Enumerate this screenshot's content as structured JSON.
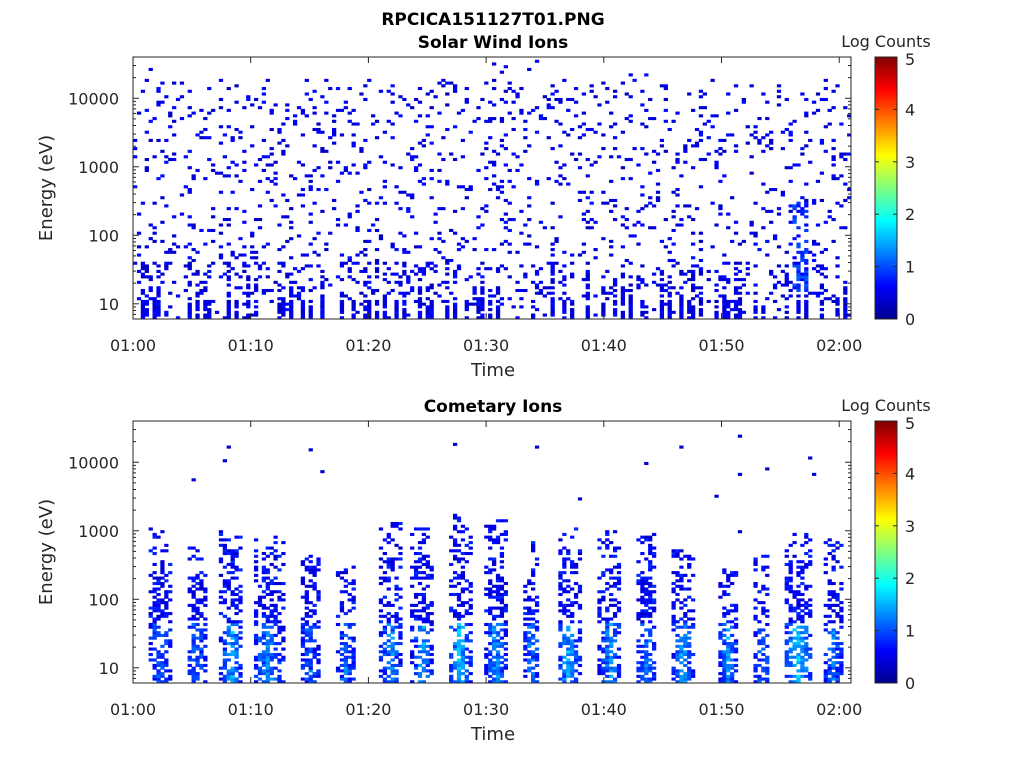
{
  "figure": {
    "file_title": "RPCICA151127T01.PNG"
  },
  "chart_data": [
    {
      "type": "heatmap",
      "title": "Solar Wind Ions",
      "xlabel": "Time",
      "ylabel": "Energy (eV)",
      "x_ticks": [
        "01:00",
        "01:10",
        "01:20",
        "01:30",
        "01:40",
        "01:50",
        "02:00"
      ],
      "x_range_minutes": [
        0,
        61
      ],
      "y_scale": "log",
      "y_ticks": [
        "10",
        "100",
        "1000",
        "10000"
      ],
      "y_tick_values": [
        10,
        100,
        1000,
        10000
      ],
      "y_range": [
        6,
        40000
      ],
      "colorbar": {
        "label": "Log Counts",
        "ticks": [
          "0",
          "1",
          "2",
          "3",
          "4",
          "5"
        ],
        "range": [
          0,
          5
        ],
        "colormap": "jet"
      },
      "pattern": "sparse background counts (~0.3-0.7 log counts) scattered across all energies, denser vertical streaks below 40 eV",
      "hot_regions": [
        {
          "t_min": 56.0,
          "t_max": 57.5,
          "e_min": 15,
          "e_max": 300,
          "level": 1.0
        }
      ],
      "bottom_streak_minutes": [
        1.0,
        2.0,
        4.8,
        5.5,
        6.3,
        8.0,
        8.7,
        9.8,
        10.4,
        12.6,
        13.4,
        14.3,
        15.2,
        16.0,
        17.8,
        18.7,
        19.9,
        20.7,
        21.4,
        22.3,
        23.1,
        24.4,
        25.2,
        26.8,
        27.5,
        28.4,
        29.5,
        30.3,
        31.0,
        33.9,
        35.5,
        36.6,
        37.3,
        38.6,
        39.9,
        40.8,
        41.7,
        42.3,
        43.4,
        44.8,
        45.7,
        46.7,
        47.4,
        48.3,
        49.6,
        50.4,
        51.4,
        52.8,
        53.5,
        55.4,
        56.4,
        57.1,
        58.5,
        59.7,
        60.5
      ]
    },
    {
      "type": "heatmap",
      "title": "Cometary Ions",
      "xlabel": "Time",
      "ylabel": "Energy (eV)",
      "x_ticks": [
        "01:00",
        "01:10",
        "01:20",
        "01:30",
        "01:40",
        "01:50",
        "02:00"
      ],
      "x_range_minutes": [
        0,
        61
      ],
      "y_scale": "log",
      "y_ticks": [
        "10",
        "100",
        "1000",
        "10000"
      ],
      "y_tick_values": [
        10,
        100,
        1000,
        10000
      ],
      "y_range": [
        6,
        40000
      ],
      "colorbar": {
        "label": "Log Counts",
        "ticks": [
          "0",
          "1",
          "2",
          "3",
          "4",
          "5"
        ],
        "range": [
          0,
          5
        ],
        "colormap": "jet"
      },
      "pattern": "periodic vertical bursts of cometary ions, peak counts at low energies (~7-40 eV) reaching ~1.5-2 log counts",
      "bursts": [
        {
          "t_min": 1.2,
          "t_max": 3.3,
          "e_top": 1000,
          "peak": 1.1
        },
        {
          "t_min": 4.5,
          "t_max": 6.2,
          "e_top": 500,
          "peak": 1.2
        },
        {
          "t_min": 7.3,
          "t_max": 9.4,
          "e_top": 900,
          "peak": 1.6
        },
        {
          "t_min": 10.2,
          "t_max": 12.8,
          "e_top": 800,
          "peak": 1.4
        },
        {
          "t_min": 14.2,
          "t_max": 15.8,
          "e_top": 400,
          "peak": 1.1
        },
        {
          "t_min": 17.4,
          "t_max": 18.8,
          "e_top": 300,
          "peak": 1.3
        },
        {
          "t_min": 21.0,
          "t_max": 22.8,
          "e_top": 1200,
          "peak": 1.4
        },
        {
          "t_min": 23.7,
          "t_max": 25.5,
          "e_top": 1000,
          "peak": 1.5
        },
        {
          "t_min": 26.8,
          "t_max": 28.8,
          "e_top": 1500,
          "peak": 1.8
        },
        {
          "t_min": 30.0,
          "t_max": 31.7,
          "e_top": 1300,
          "peak": 1.6
        },
        {
          "t_min": 33.0,
          "t_max": 34.6,
          "e_top": 600,
          "peak": 1.3
        },
        {
          "t_min": 36.0,
          "t_max": 38.0,
          "e_top": 1000,
          "peak": 1.6
        },
        {
          "t_min": 39.6,
          "t_max": 41.6,
          "e_top": 900,
          "peak": 1.5
        },
        {
          "t_min": 42.7,
          "t_max": 44.5,
          "e_top": 800,
          "peak": 1.3
        },
        {
          "t_min": 45.8,
          "t_max": 47.6,
          "e_top": 500,
          "peak": 1.6
        },
        {
          "t_min": 49.8,
          "t_max": 51.4,
          "e_top": 300,
          "peak": 1.5
        },
        {
          "t_min": 52.6,
          "t_max": 54.2,
          "e_top": 400,
          "peak": 1.2
        },
        {
          "t_min": 55.2,
          "t_max": 57.8,
          "e_top": 800,
          "peak": 1.9
        },
        {
          "t_min": 58.7,
          "t_max": 60.3,
          "e_top": 700,
          "peak": 1.3
        }
      ],
      "sparse_high_points": [
        {
          "t": 5.3,
          "e": 5500
        },
        {
          "t": 7.9,
          "e": 11000
        },
        {
          "t": 8.1,
          "e": 16000
        },
        {
          "t": 15.0,
          "e": 15000
        },
        {
          "t": 16.1,
          "e": 7500
        },
        {
          "t": 27.5,
          "e": 18500
        },
        {
          "t": 34.2,
          "e": 17500
        },
        {
          "t": 37.8,
          "e": 2800
        },
        {
          "t": 43.5,
          "e": 9500
        },
        {
          "t": 46.6,
          "e": 16500
        },
        {
          "t": 49.6,
          "e": 3300
        },
        {
          "t": 51.5,
          "e": 24000
        },
        {
          "t": 51.4,
          "e": 6500
        },
        {
          "t": 53.9,
          "e": 8000
        },
        {
          "t": 57.4,
          "e": 11500
        },
        {
          "t": 57.8,
          "e": 7000
        },
        {
          "t": 51.7,
          "e": 1000
        }
      ]
    }
  ]
}
